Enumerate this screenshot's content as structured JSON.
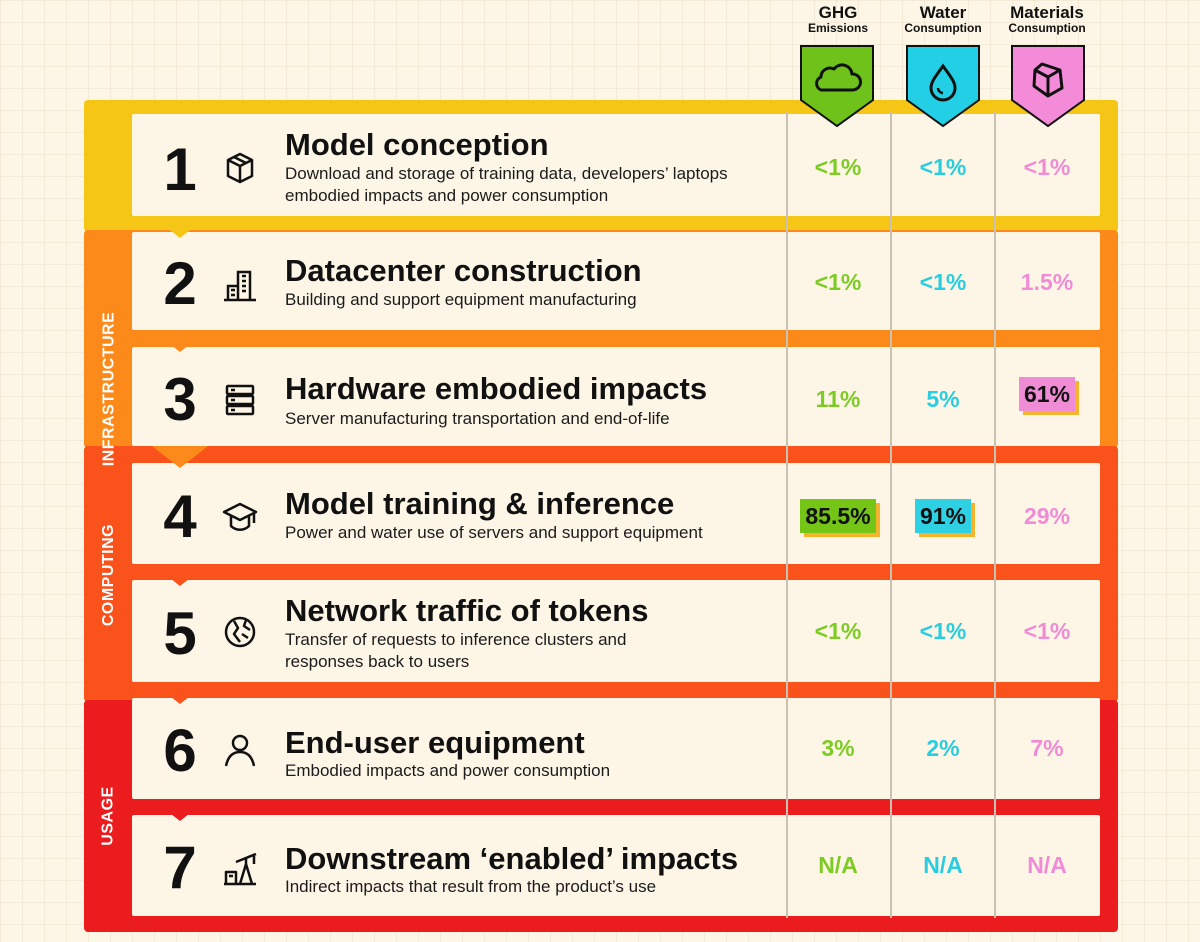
{
  "columns": [
    {
      "title": "GHG",
      "subtitle": "Emissions",
      "icon": "cloud-icon",
      "color": "#6fc21a"
    },
    {
      "title": "Water",
      "subtitle": "Consumption",
      "icon": "water-drop-icon",
      "color": "#22cfe4"
    },
    {
      "title": "Materials",
      "subtitle": "Consumption",
      "icon": "material-cube-icon",
      "color": "#f38bd8"
    }
  ],
  "groups": [
    {
      "label": "INFRASTRUCTURE",
      "color": "#fb8a1a"
    },
    {
      "label": "COMPUTING",
      "color": "#f9521b"
    },
    {
      "label": "USAGE",
      "color": "#ea1c1d"
    }
  ],
  "rows": [
    {
      "num": "1",
      "icon": "box-icon",
      "title": "Model conception",
      "desc": "Download and storage of training data, developers’ laptops embodied impacts and power consumption",
      "ghg": "<1%",
      "water": "<1%",
      "materials": "<1%"
    },
    {
      "num": "2",
      "icon": "building-icon",
      "title": "Datacenter construction",
      "desc": "Building and support equipment manufacturing",
      "ghg": "<1%",
      "water": "<1%",
      "materials": "1.5%"
    },
    {
      "num": "3",
      "icon": "server-icon",
      "title": "Hardware embodied impacts",
      "desc": "Server manufacturing transportation and end-of-life",
      "ghg": "11%",
      "water": "5%",
      "materials": "61%"
    },
    {
      "num": "4",
      "icon": "graduation-cap-icon",
      "title": "Model training & inference",
      "desc": "Power and water use of servers and support equipment",
      "ghg": "85.5%",
      "water": "91%",
      "materials": "29%"
    },
    {
      "num": "5",
      "icon": "network-globe-icon",
      "title": "Network traffic of tokens",
      "desc": "Transfer of requests to inference clusters and responses back to users",
      "ghg": "<1%",
      "water": "<1%",
      "materials": "<1%"
    },
    {
      "num": "6",
      "icon": "user-icon",
      "title": "End-user equipment",
      "desc": "Embodied impacts and power consumption",
      "ghg": "3%",
      "water": "2%",
      "materials": "7%"
    },
    {
      "num": "7",
      "icon": "oil-pump-icon",
      "title": "Downstream ‘enabled’ impacts",
      "desc": "Indirect impacts that result from the product’s use",
      "ghg": "N/A",
      "water": "N/A",
      "materials": "N/A"
    }
  ],
  "highlights": {
    "water_row": "91%"
  }
}
